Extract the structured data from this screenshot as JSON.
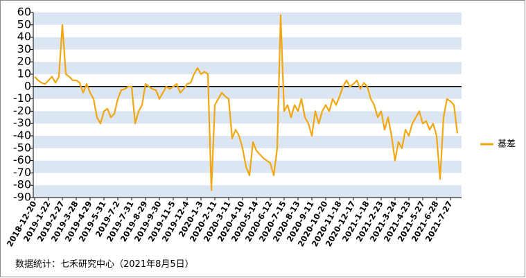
{
  "chart_data": {
    "type": "line",
    "categories": [
      "2018-12-20",
      null,
      null,
      null,
      "2019-1-22",
      null,
      null,
      null,
      "2019-2-27",
      null,
      null,
      null,
      "2019-3-28",
      null,
      null,
      null,
      "2019-4-29",
      null,
      null,
      null,
      "2019-5-31",
      null,
      null,
      null,
      "2019-7-2",
      null,
      null,
      null,
      "2019-7-31",
      null,
      null,
      null,
      "2019-8-29",
      null,
      null,
      null,
      "2019-9-30",
      null,
      null,
      null,
      "2019-11-5",
      null,
      null,
      null,
      "2019-12-4",
      null,
      null,
      null,
      "2020-1-3",
      null,
      null,
      null,
      "2020-2-11",
      null,
      null,
      null,
      "2020-3-11",
      null,
      null,
      null,
      "2020-4-10",
      null,
      null,
      null,
      "2020-5-14",
      null,
      null,
      null,
      "2020-6-12",
      null,
      null,
      null,
      "2020-7-15",
      null,
      null,
      null,
      "2020-8-13",
      null,
      null,
      null,
      "2020-9-11",
      null,
      null,
      null,
      "2020-10-20",
      null,
      null,
      null,
      "2020-11-18",
      null,
      null,
      null,
      "2020-12-17",
      null,
      null,
      null,
      "2021-1-18",
      null,
      null,
      null,
      "2021-2-23",
      null,
      null,
      null,
      "2021-3-24",
      null,
      null,
      null,
      "2021-4-23",
      null,
      null,
      null,
      "2021-5-27",
      null,
      null,
      null,
      "2021-6-28",
      null,
      null,
      null,
      "2021-7-27",
      null,
      null
    ],
    "series": [
      {
        "name": "基差",
        "color": "#f2a60f",
        "values": [
          8,
          5,
          3,
          2,
          5,
          8,
          3,
          8,
          50,
          10,
          8,
          5,
          5,
          3,
          -5,
          2,
          -5,
          -10,
          -25,
          -30,
          -20,
          -18,
          -25,
          -22,
          -10,
          -3,
          -2,
          0,
          0,
          -30,
          -20,
          -15,
          2,
          0,
          -2,
          -3,
          -10,
          -5,
          0,
          -2,
          0,
          2,
          -5,
          -2,
          2,
          3,
          10,
          15,
          10,
          12,
          10,
          -84,
          -15,
          -10,
          -5,
          -8,
          -10,
          -42,
          -35,
          -40,
          -50,
          -65,
          -72,
          -45,
          -52,
          -55,
          -58,
          -60,
          -62,
          -72,
          -50,
          58,
          -20,
          -15,
          -25,
          -15,
          -20,
          -10,
          -25,
          -30,
          -40,
          -20,
          -30,
          -20,
          -15,
          -20,
          -10,
          -15,
          -8,
          0,
          5,
          0,
          2,
          5,
          -2,
          3,
          0,
          -10,
          -15,
          -25,
          -20,
          -35,
          -25,
          -40,
          -60,
          -45,
          -50,
          -35,
          -40,
          -30,
          -25,
          -20,
          -30,
          -28,
          -35,
          -30,
          -40,
          -75,
          -25,
          -10,
          -12,
          -15,
          -38
        ]
      }
    ],
    "ylim": [
      -90,
      60
    ],
    "yticks": [
      -90,
      -80,
      -70,
      -60,
      -50,
      -40,
      -30,
      -20,
      -10,
      0,
      10,
      20,
      30,
      40,
      50,
      60
    ],
    "grid": true,
    "legend": "right",
    "source": "数据统计：七禾研究中心（2021年8月5日）"
  }
}
